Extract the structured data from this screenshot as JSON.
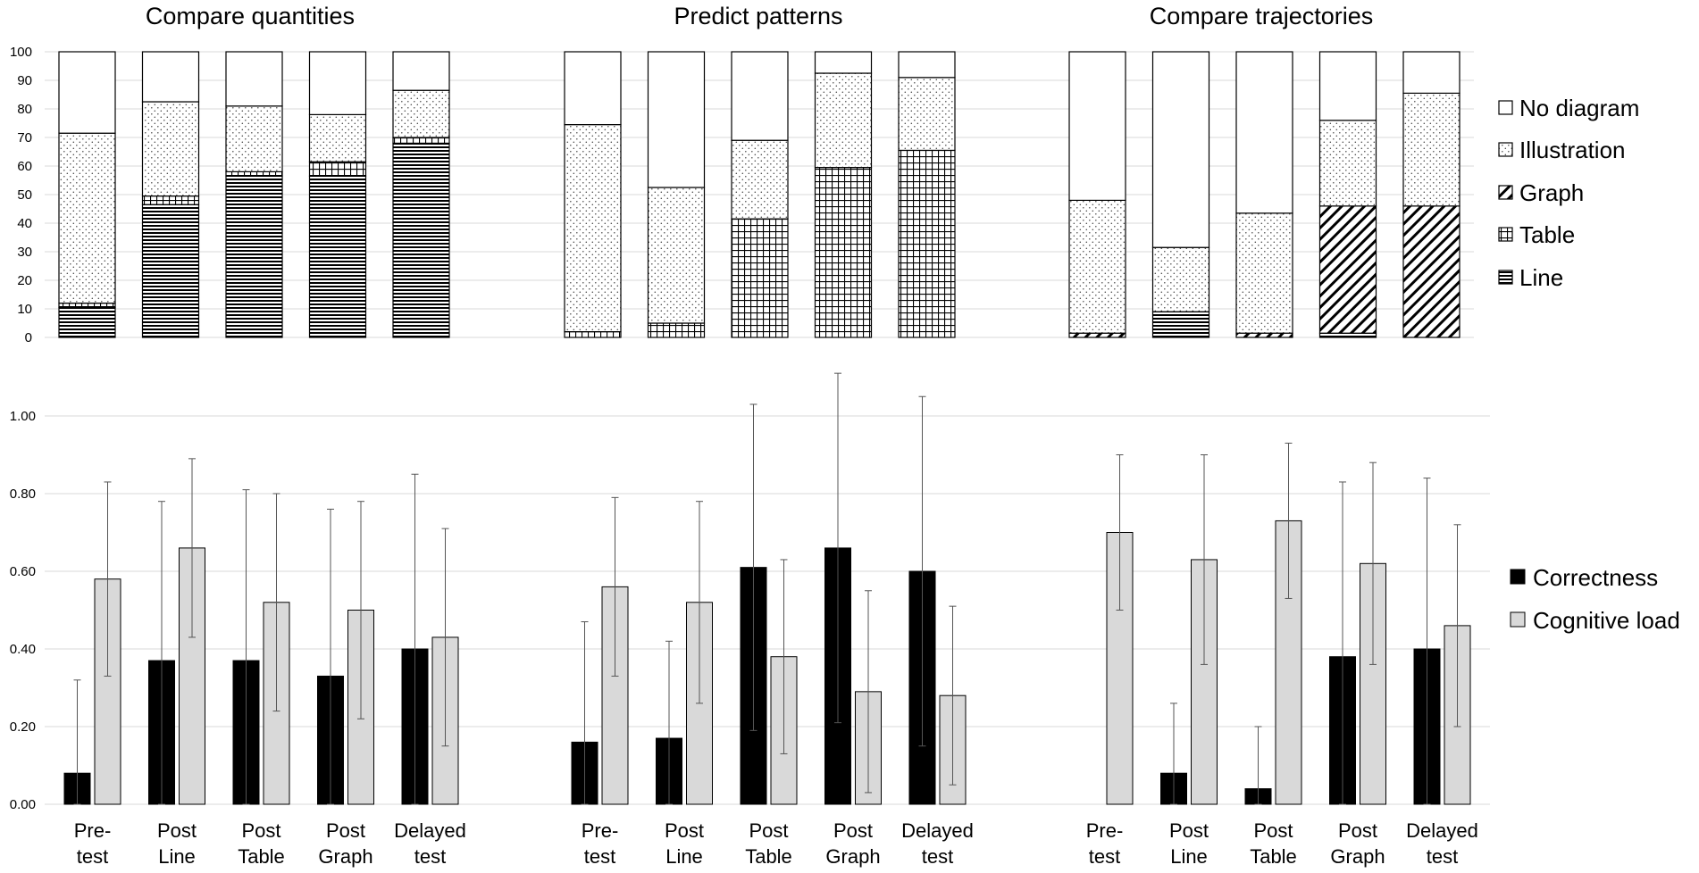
{
  "chart_data": [
    {
      "type": "stacked-bar",
      "titles": [
        "Compare quantities",
        "Predict patterns",
        "Compare trajectories"
      ],
      "categories": [
        "Pre-test",
        "Post Line",
        "Post Table",
        "Post Graph",
        "Delayed test"
      ],
      "category_lines": [
        [
          "Pre-",
          "test"
        ],
        [
          "Post",
          "Line"
        ],
        [
          "Post",
          "Table"
        ],
        [
          "Post",
          "Graph"
        ],
        [
          "Delayed",
          "test"
        ]
      ],
      "yticks": [
        0,
        10,
        20,
        30,
        40,
        50,
        60,
        70,
        80,
        90,
        100
      ],
      "ylim": [
        0,
        100
      ],
      "legend": [
        "No diagram",
        "Illustration",
        "Graph",
        "Table",
        "Line"
      ],
      "stack_order": [
        "Line",
        "Table",
        "Graph",
        "Illustration",
        "No diagram"
      ],
      "groups": [
        {
          "name": "Compare quantities",
          "values": [
            {
              "Line": 10.5,
              "Table": 1.5,
              "Graph": 0,
              "Illustration": 59.5,
              "No diagram": 28.5
            },
            {
              "Line": 46.5,
              "Table": 3,
              "Graph": 0,
              "Illustration": 33,
              "No diagram": 17.5
            },
            {
              "Line": 56.5,
              "Table": 1.5,
              "Graph": 0,
              "Illustration": 23,
              "No diagram": 19
            },
            {
              "Line": 56.5,
              "Table": 5,
              "Graph": 0,
              "Illustration": 16.5,
              "No diagram": 22
            },
            {
              "Line": 68,
              "Table": 2,
              "Graph": 0,
              "Illustration": 16.5,
              "No diagram": 13.5
            }
          ]
        },
        {
          "name": "Predict patterns",
          "values": [
            {
              "Line": 0,
              "Table": 2,
              "Graph": 0,
              "Illustration": 72.5,
              "No diagram": 25.5
            },
            {
              "Line": 0,
              "Table": 5,
              "Graph": 0,
              "Illustration": 47.5,
              "No diagram": 47.5
            },
            {
              "Line": 0,
              "Table": 41.5,
              "Graph": 0,
              "Illustration": 27.5,
              "No diagram": 31
            },
            {
              "Line": 0,
              "Table": 59.5,
              "Graph": 0,
              "Illustration": 33,
              "No diagram": 7.5
            },
            {
              "Line": 0,
              "Table": 65.5,
              "Graph": 0,
              "Illustration": 25.5,
              "No diagram": 9
            }
          ]
        },
        {
          "name": "Compare trajectories",
          "values": [
            {
              "Line": 0,
              "Table": 0,
              "Graph": 1.5,
              "Illustration": 46.5,
              "No diagram": 52
            },
            {
              "Line": 9,
              "Table": 0,
              "Graph": 0,
              "Illustration": 22.5,
              "No diagram": 68.5
            },
            {
              "Line": 0,
              "Table": 0,
              "Graph": 1.5,
              "Illustration": 42,
              "No diagram": 56.5
            },
            {
              "Line": 1.5,
              "Table": 0,
              "Graph": 44.5,
              "Illustration": 30,
              "No diagram": 24
            },
            {
              "Line": 0,
              "Table": 0,
              "Graph": 46,
              "Illustration": 39.5,
              "No diagram": 14.5
            }
          ]
        }
      ]
    },
    {
      "type": "bar-errorbar",
      "categories": [
        "Pre-test",
        "Post Line",
        "Post Table",
        "Post Graph",
        "Delayed test"
      ],
      "yticks": [
        "0.00",
        "0.20",
        "0.40",
        "0.60",
        "0.80",
        "1.00"
      ],
      "ylim": [
        0,
        1.12
      ],
      "legend": [
        "Correctness",
        "Cognitive load"
      ],
      "colors": {
        "Correctness": "#000000",
        "Cognitive load": "#d9d9d9"
      },
      "groups": [
        {
          "name": "Compare quantities",
          "series": [
            {
              "name": "Correctness",
              "values": [
                0.08,
                0.37,
                0.37,
                0.33,
                0.4
              ],
              "errors": [
                0.24,
                0.41,
                0.44,
                0.43,
                0.45
              ]
            },
            {
              "name": "Cognitive load",
              "values": [
                0.58,
                0.66,
                0.52,
                0.5,
                0.43
              ],
              "errors": [
                0.25,
                0.23,
                0.28,
                0.28,
                0.28
              ]
            }
          ]
        },
        {
          "name": "Predict patterns",
          "series": [
            {
              "name": "Correctness",
              "values": [
                0.16,
                0.17,
                0.61,
                0.66,
                0.6
              ],
              "errors": [
                0.31,
                0.25,
                0.42,
                0.45,
                0.45
              ]
            },
            {
              "name": "Cognitive load",
              "values": [
                0.56,
                0.52,
                0.38,
                0.29,
                0.28
              ],
              "errors": [
                0.23,
                0.26,
                0.25,
                0.26,
                0.23
              ]
            }
          ]
        },
        {
          "name": "Compare trajectories",
          "series": [
            {
              "name": "Correctness",
              "values": [
                0.0,
                0.08,
                0.04,
                0.38,
                0.4
              ],
              "errors": [
                0,
                0.18,
                0.16,
                0.45,
                0.44
              ]
            },
            {
              "name": "Cognitive load",
              "values": [
                0.7,
                0.63,
                0.73,
                0.62,
                0.46
              ],
              "errors": [
                0.2,
                0.27,
                0.2,
                0.26,
                0.26
              ]
            }
          ]
        }
      ]
    }
  ]
}
